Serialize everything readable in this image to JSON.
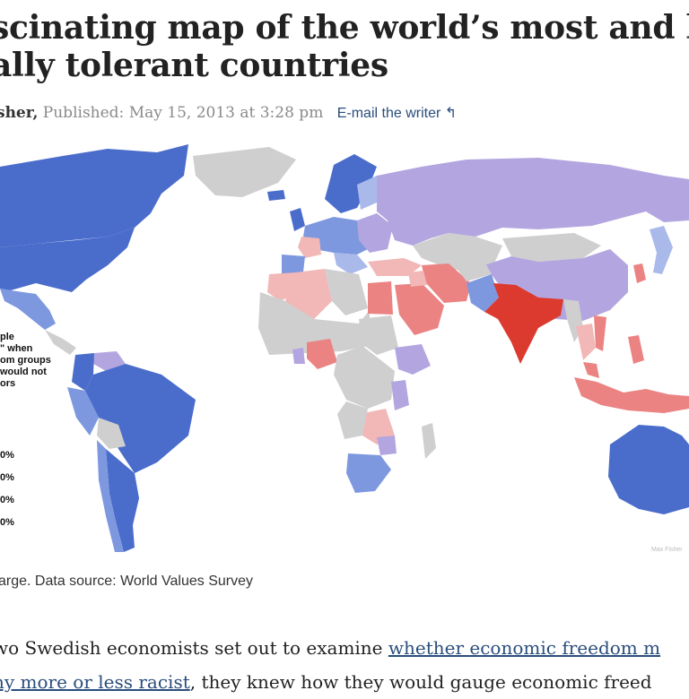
{
  "article": {
    "headline_line1": "scinating map of the world’s most and le",
    "headline_line2": "ally tolerant countries",
    "author": "sher,",
    "published_label": "Published:",
    "published_date": "May 15, 2013 at 3:28 pm",
    "email_link": "E-mail the writer"
  },
  "map": {
    "legend_title_lines": [
      "ple",
      "\" when",
      "om groups",
      "would not",
      "ors"
    ],
    "legend_values": [
      "0%",
      "0%",
      "0%",
      "0%"
    ],
    "credit": "Max Fisher",
    "colors": {
      "dark_blue": "#4a6ccb",
      "mid_blue": "#7d98df",
      "light_blue": "#a9b9ea",
      "lavender": "#b3a6e0",
      "grey": "#cfcfcf",
      "light_red": "#f2b7b7",
      "mid_red": "#eb8383",
      "dark_red": "#dc3a2e"
    }
  },
  "caption": "arge. Data source: World Values Survey",
  "body": {
    "line1_text": "wo Swedish economists set out to examine ",
    "line1_link": "whether economic freedom m",
    "line2_link": "ny more or less racist",
    "line2_text": ", they knew how they would gauge economic freed"
  }
}
